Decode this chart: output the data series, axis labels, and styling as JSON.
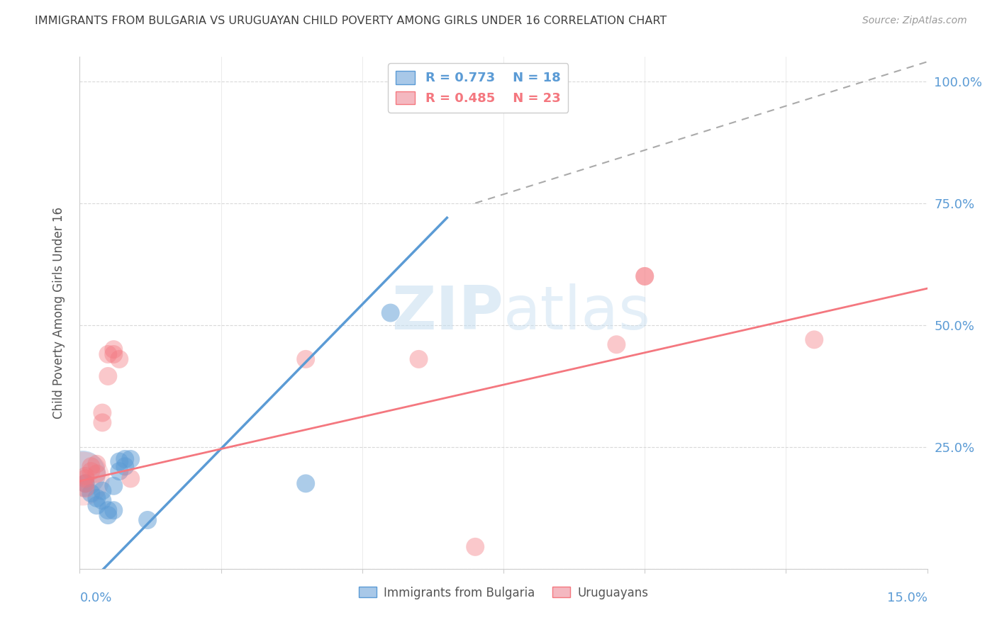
{
  "title": "IMMIGRANTS FROM BULGARIA VS URUGUAYAN CHILD POVERTY AMONG GIRLS UNDER 16 CORRELATION CHART",
  "source": "Source: ZipAtlas.com",
  "ylabel": "Child Poverty Among Girls Under 16",
  "xlim": [
    0.0,
    0.15
  ],
  "ylim": [
    0.0,
    1.05
  ],
  "legend_r_blue": "0.773",
  "legend_n_blue": "18",
  "legend_r_pink": "0.485",
  "legend_n_pink": "23",
  "watermark": "ZIPatlas",
  "bg_color": "#ffffff",
  "blue_color": "#5b9bd5",
  "pink_color": "#f4777f",
  "blue_fill": "#a8c8e8",
  "pink_fill": "#f4b8c0",
  "blue_scatter": [
    [
      0.001,
      0.175
    ],
    [
      0.002,
      0.155
    ],
    [
      0.003,
      0.145
    ],
    [
      0.003,
      0.13
    ],
    [
      0.004,
      0.16
    ],
    [
      0.004,
      0.14
    ],
    [
      0.005,
      0.12
    ],
    [
      0.005,
      0.11
    ],
    [
      0.006,
      0.12
    ],
    [
      0.006,
      0.17
    ],
    [
      0.007,
      0.2
    ],
    [
      0.007,
      0.22
    ],
    [
      0.008,
      0.21
    ],
    [
      0.008,
      0.225
    ],
    [
      0.009,
      0.225
    ],
    [
      0.012,
      0.1
    ],
    [
      0.04,
      0.175
    ],
    [
      0.055,
      0.525
    ]
  ],
  "pink_scatter": [
    [
      0.001,
      0.19
    ],
    [
      0.001,
      0.185
    ],
    [
      0.001,
      0.175
    ],
    [
      0.001,
      0.165
    ],
    [
      0.002,
      0.21
    ],
    [
      0.002,
      0.2
    ],
    [
      0.003,
      0.215
    ],
    [
      0.003,
      0.195
    ],
    [
      0.004,
      0.3
    ],
    [
      0.004,
      0.32
    ],
    [
      0.005,
      0.395
    ],
    [
      0.005,
      0.44
    ],
    [
      0.006,
      0.44
    ],
    [
      0.006,
      0.45
    ],
    [
      0.007,
      0.43
    ],
    [
      0.009,
      0.185
    ],
    [
      0.04,
      0.43
    ],
    [
      0.06,
      0.43
    ],
    [
      0.07,
      0.045
    ],
    [
      0.095,
      0.46
    ],
    [
      0.1,
      0.6
    ],
    [
      0.1,
      0.6
    ],
    [
      0.13,
      0.47
    ]
  ],
  "blue_large": [
    [
      0.0005,
      0.195
    ]
  ],
  "pink_large": [
    [
      0.0005,
      0.185
    ]
  ],
  "blue_line": [
    [
      0.0,
      -0.05
    ],
    [
      0.065,
      0.72
    ]
  ],
  "pink_line": [
    [
      0.0,
      0.18
    ],
    [
      0.15,
      0.575
    ]
  ],
  "dashed_line": [
    [
      0.07,
      0.75
    ],
    [
      0.15,
      1.04
    ]
  ],
  "grid_color": "#d0d0d0",
  "title_color": "#404040",
  "axis_color": "#5b9bd5"
}
